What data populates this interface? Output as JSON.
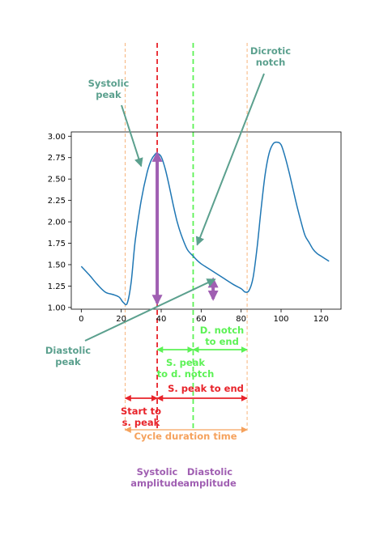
{
  "chart_data": {
    "type": "line",
    "series": [
      {
        "color": "#1f77b4",
        "x": [
          0,
          4,
          8,
          12,
          16,
          19,
          21,
          23,
          25,
          27,
          30,
          33,
          35,
          37,
          38,
          40,
          42,
          44,
          46,
          48,
          50,
          53,
          56,
          58,
          60,
          64,
          70,
          76,
          80,
          82,
          84,
          86,
          88,
          90,
          92,
          94,
          96,
          98,
          100,
          102,
          104,
          106,
          108,
          110,
          112,
          114,
          116,
          118,
          120,
          122,
          124
        ],
        "y": [
          1.48,
          1.38,
          1.27,
          1.18,
          1.15,
          1.12,
          1.06,
          1.05,
          1.3,
          1.78,
          2.25,
          2.58,
          2.72,
          2.79,
          2.8,
          2.76,
          2.62,
          2.42,
          2.2,
          2.0,
          1.85,
          1.68,
          1.6,
          1.55,
          1.51,
          1.45,
          1.36,
          1.27,
          1.22,
          1.18,
          1.2,
          1.35,
          1.7,
          2.15,
          2.55,
          2.8,
          2.91,
          2.93,
          2.9,
          2.76,
          2.58,
          2.38,
          2.18,
          2.0,
          1.84,
          1.76,
          1.68,
          1.63,
          1.6,
          1.57,
          1.54
        ]
      }
    ],
    "xlim": [
      -5,
      130
    ],
    "ylim": [
      0.98,
      3.05
    ],
    "xticks": [
      0,
      20,
      40,
      60,
      80,
      100,
      120
    ],
    "yticks": [
      1.0,
      1.25,
      1.5,
      1.75,
      2.0,
      2.25,
      2.5,
      2.75,
      3.0
    ],
    "xtick_labels": [
      "0",
      "20",
      "40",
      "60",
      "80",
      "100",
      "120"
    ],
    "ytick_labels": [
      "1.00",
      "1.25",
      "1.50",
      "1.75",
      "2.00",
      "2.25",
      "2.50",
      "2.75",
      "3.00"
    ],
    "grid": false,
    "vlines": [
      {
        "x": 22,
        "color": "#f5a25d",
        "style": "dashed"
      },
      {
        "x": 38,
        "color": "#e8232a",
        "style": "dashed"
      },
      {
        "x": 56,
        "color": "#5cf255",
        "style": "dashed"
      },
      {
        "x": 83,
        "color": "#f5a25d",
        "style": "dashed"
      }
    ],
    "amplitude_arrows": [
      {
        "label_key": "systolic_amplitude",
        "x": 38,
        "y_from": 1.05,
        "y_to": 2.8,
        "color": "#a05fb2"
      },
      {
        "label_key": "diastolic_amplitude",
        "x": 66,
        "y_from": 1.1,
        "y_to": 1.33,
        "color": "#a05fb2"
      }
    ],
    "interval_arrows": [
      {
        "label_key": "start_to_s_peak",
        "x_from": 22,
        "x_to": 38,
        "color": "#e8232a"
      },
      {
        "label_key": "s_peak_to_end",
        "x_from": 38,
        "x_to": 83,
        "color": "#e8232a"
      },
      {
        "label_key": "s_peak_to_d_notch",
        "x_from": 38,
        "x_to": 56,
        "color": "#5cf255"
      },
      {
        "label_key": "d_notch_to_end",
        "x_from": 56,
        "x_to": 83,
        "color": "#5cf255"
      },
      {
        "label_key": "cycle_duration",
        "x_from": 22,
        "x_to": 83,
        "color": "#f5a25d"
      }
    ],
    "point_annotations": [
      {
        "label_key": "systolic_peak",
        "x": 30,
        "y": 2.65,
        "color": "#5ba08e"
      },
      {
        "label_key": "dicrotic_notch",
        "x": 58,
        "y": 1.73,
        "color": "#5ba08e"
      },
      {
        "label_key": "diastolic_peak",
        "x": 67,
        "y": 1.33,
        "color": "#5ba08e"
      }
    ]
  },
  "labels": {
    "systolic_peak": "Systolic\npeak",
    "dicrotic_notch": "Dicrotic\nnotch",
    "diastolic_peak": "Diastolic\npeak",
    "d_notch_to_end": "D. notch\nto end",
    "s_peak_to_d_notch": "S. peak\nto d. notch",
    "s_peak_to_end": "S. peak to end",
    "start_to_s_peak": "Start to\ns. peak",
    "cycle_duration": "Cycle duration time",
    "systolic_amplitude": "Systolic\namplitude",
    "diastolic_amplitude": "Diastolic\namplitude"
  },
  "colors": {
    "waveform": "#1f77b4",
    "systolic": "#e8232a",
    "dicrotic": "#5cf255",
    "cycle": "#f5a25d",
    "amplitude": "#a05fb2",
    "annotation": "#5ba08e"
  }
}
